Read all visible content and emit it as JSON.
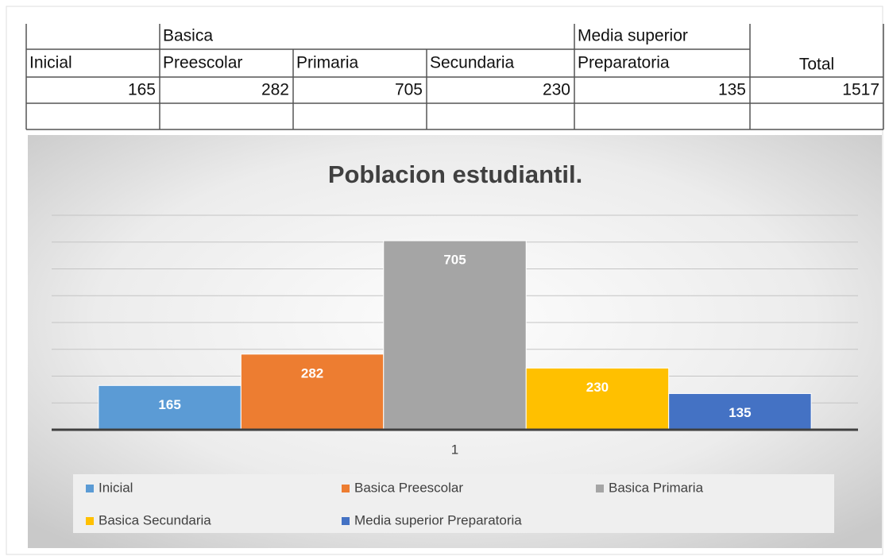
{
  "table": {
    "header_top": [
      "Basica",
      "Media superior"
    ],
    "header": [
      "Inicial",
      "Preescolar",
      "Primaria",
      "Secundaria",
      "Preparatoria",
      "Total"
    ],
    "rows": [
      [
        "165",
        "282",
        "705",
        "230",
        "135",
        "1517"
      ]
    ]
  },
  "chart_data": {
    "type": "bar",
    "title": "Poblacion estudiantil.",
    "categories": [
      "1"
    ],
    "series": [
      {
        "name": "Inicial",
        "color": "#5b9bd5",
        "values": [
          165
        ]
      },
      {
        "name": "Basica Preescolar",
        "color": "#ed7d31",
        "values": [
          282
        ]
      },
      {
        "name": "Basica Primaria",
        "color": "#a5a5a5",
        "values": [
          705
        ]
      },
      {
        "name": "Basica Secundaria",
        "color": "#ffc000",
        "values": [
          230
        ]
      },
      {
        "name": "Media superior Preparatoria",
        "color": "#4472c4",
        "values": [
          135
        ]
      }
    ],
    "ylim": [
      0,
      800
    ],
    "yticks": [
      0,
      100,
      200,
      300,
      400,
      500,
      600,
      700,
      800
    ],
    "grid": true,
    "legend": "bottom"
  }
}
